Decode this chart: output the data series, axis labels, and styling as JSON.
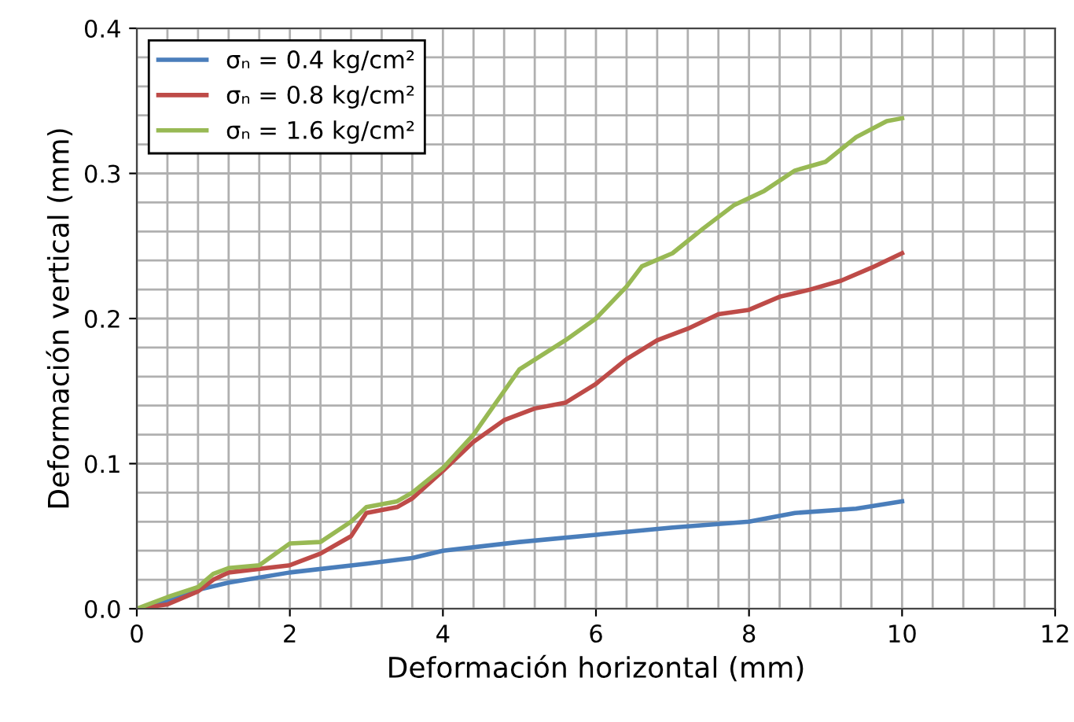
{
  "chart_data": {
    "type": "line",
    "xlabel": "Deformación horizontal (mm)",
    "ylabel": "Deformación vertical (mm)",
    "xlim": [
      0,
      12
    ],
    "xticks": [
      0,
      2,
      4,
      6,
      8,
      10,
      12
    ],
    "ylim": [
      0,
      0.4
    ],
    "yticks": [
      {
        "value": 0,
        "label": "0.0"
      },
      0.1,
      0.2,
      0.3,
      0.4
    ],
    "grid": true,
    "legend": "top left",
    "marker": "none",
    "line_style": "solid",
    "series": [
      {
        "name": "σₙ = 0.4 kg/cm²",
        "color": "#4a7ebb",
        "x": [
          0,
          0.4,
          0.8,
          1.2,
          2,
          3,
          3.6,
          4,
          5,
          6,
          7,
          8,
          8.6,
          9.4,
          10
        ],
        "values": [
          0,
          0.005,
          0.013,
          0.018,
          0.025,
          0.031,
          0.035,
          0.04,
          0.046,
          0.051,
          0.056,
          0.06,
          0.066,
          0.069,
          0.074
        ]
      },
      {
        "name": "σₙ = 0.8 kg/cm²",
        "color": "#be4b48",
        "x": [
          0,
          0.4,
          0.8,
          1,
          1.2,
          2,
          2.4,
          2.8,
          3,
          3.4,
          3.6,
          4,
          4.4,
          4.8,
          5.2,
          5.6,
          6,
          6.4,
          6.8,
          7.2,
          7.6,
          8,
          8.4,
          8.8,
          9.2,
          9.6,
          10
        ],
        "values": [
          0,
          0.003,
          0.012,
          0.02,
          0.025,
          0.03,
          0.038,
          0.05,
          0.066,
          0.07,
          0.076,
          0.095,
          0.115,
          0.13,
          0.138,
          0.142,
          0.155,
          0.172,
          0.185,
          0.193,
          0.203,
          0.206,
          0.215,
          0.22,
          0.226,
          0.235,
          0.245
        ]
      },
      {
        "name": "σₙ = 1.6 kg/cm²",
        "color": "#98b954",
        "x": [
          0,
          0.4,
          0.8,
          1,
          1.2,
          1.6,
          2,
          2.4,
          2.8,
          3,
          3.4,
          3.6,
          4,
          4.4,
          4.8,
          5,
          5.6,
          6,
          6.4,
          6.6,
          7,
          7.4,
          7.8,
          8.2,
          8.6,
          9,
          9.4,
          9.8,
          10
        ],
        "values": [
          0,
          0.008,
          0.015,
          0.024,
          0.028,
          0.03,
          0.045,
          0.046,
          0.06,
          0.07,
          0.074,
          0.08,
          0.097,
          0.12,
          0.15,
          0.165,
          0.185,
          0.2,
          0.222,
          0.236,
          0.245,
          0.262,
          0.278,
          0.288,
          0.302,
          0.308,
          0.325,
          0.336,
          0.338
        ]
      }
    ]
  }
}
